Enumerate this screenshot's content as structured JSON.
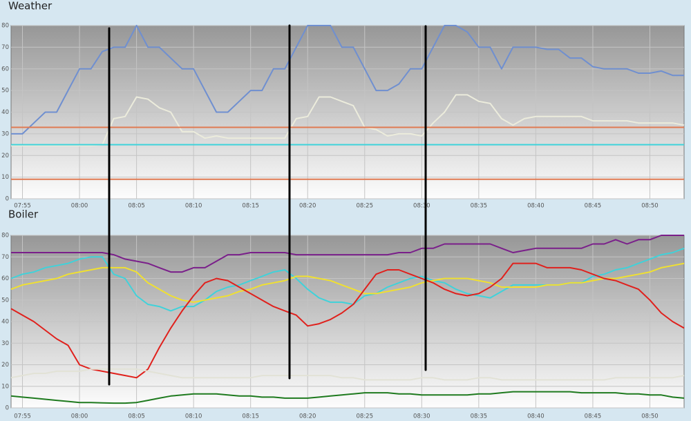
{
  "chart_data": [
    {
      "type": "line",
      "title": "Weather",
      "grid": true,
      "x": [
        "07:54",
        "07:55",
        "07:56",
        "07:57",
        "07:58",
        "07:59",
        "08:00",
        "08:01",
        "08:02",
        "08:03",
        "08:04",
        "08:05",
        "08:06",
        "08:07",
        "08:08",
        "08:09",
        "08:10",
        "08:11",
        "08:12",
        "08:13",
        "08:14",
        "08:15",
        "08:16",
        "08:17",
        "08:18",
        "08:19",
        "08:20",
        "08:21",
        "08:22",
        "08:23",
        "08:24",
        "08:25",
        "08:26",
        "08:27",
        "08:28",
        "08:29",
        "08:30",
        "08:31",
        "08:32",
        "08:33",
        "08:34",
        "08:35",
        "08:36",
        "08:37",
        "08:38",
        "08:39",
        "08:40",
        "08:41",
        "08:42",
        "08:43",
        "08:44",
        "08:45",
        "08:46",
        "08:47",
        "08:48",
        "08:49",
        "08:50",
        "08:51",
        "08:52",
        "08:53"
      ],
      "xlim": [
        "07:54",
        "08:53"
      ],
      "xticks": [
        "07:55",
        "08:00",
        "08:05",
        "08:10",
        "08:15",
        "08:20",
        "08:25",
        "08:30",
        "08:35",
        "08:40",
        "08:45",
        "08:50"
      ],
      "ylim": [
        0,
        80
      ],
      "yticks": [
        0,
        10,
        20,
        30,
        40,
        50,
        60,
        70,
        80
      ],
      "series": [
        {
          "color": "#6f8fd0",
          "values": [
            30,
            30,
            35,
            40,
            40,
            50,
            60,
            60,
            68,
            70,
            70,
            80,
            70,
            70,
            65,
            60,
            60,
            50,
            40,
            40,
            45,
            50,
            50,
            60,
            60,
            70,
            80,
            80,
            80,
            70,
            70,
            60,
            50,
            50,
            53,
            60,
            60,
            70,
            80,
            80,
            77,
            70,
            70,
            60,
            70,
            70,
            70,
            69,
            69,
            65,
            65,
            61,
            60,
            60,
            60,
            58,
            58,
            59,
            57,
            57
          ]
        },
        {
          "color": "#ececdc",
          "values": [
            24.5,
            24.5,
            24.5,
            24.5,
            24.5,
            24.5,
            24.5,
            24.5,
            25,
            37,
            38,
            47,
            46,
            42,
            40,
            31,
            31,
            28,
            29,
            28,
            28,
            28,
            28,
            28,
            28,
            37,
            38,
            47,
            47,
            45,
            43,
            33,
            32,
            29,
            30,
            30,
            29,
            35,
            40,
            48,
            48,
            45,
            44,
            37,
            34,
            37,
            38,
            38,
            38,
            38,
            38,
            36,
            36,
            36,
            36,
            35,
            35,
            35,
            35,
            34
          ]
        },
        {
          "color": "#e07a52",
          "values": [
            33,
            33,
            33,
            33,
            33,
            33,
            33,
            33,
            33,
            33,
            33,
            33,
            33,
            33,
            33,
            33,
            33,
            33,
            33,
            33,
            33,
            33,
            33,
            33,
            33,
            33,
            33,
            33,
            33,
            33,
            33,
            33,
            33,
            33,
            33,
            33,
            33,
            33,
            33,
            33,
            33,
            33,
            33,
            33,
            33,
            33,
            33,
            33,
            33,
            33,
            33,
            33,
            33,
            33,
            33,
            33,
            33,
            33,
            33,
            33
          ]
        },
        {
          "color": "#3fd2da",
          "values": [
            25,
            25,
            25,
            25,
            25,
            25,
            25,
            25,
            25,
            25,
            25,
            25,
            25,
            25,
            25,
            25,
            25,
            25,
            25,
            25,
            25,
            25,
            25,
            25,
            25,
            25,
            25,
            25,
            25,
            25,
            25,
            25,
            25,
            25,
            25,
            25,
            25,
            25,
            25,
            25,
            25,
            25,
            25,
            25,
            25,
            25,
            25,
            25,
            25,
            25,
            25,
            25,
            25,
            25,
            25,
            25,
            25,
            25,
            25,
            25
          ]
        },
        {
          "color": "#e07a52",
          "values": [
            9,
            9,
            9,
            9,
            9,
            9,
            9,
            9,
            9,
            9,
            9,
            9,
            9,
            9,
            9,
            9,
            9,
            9,
            9,
            9,
            9,
            9,
            9,
            9,
            9,
            9,
            9,
            9,
            9,
            9,
            9,
            9,
            9,
            9,
            9,
            9,
            9,
            9,
            9,
            9,
            9,
            9,
            9,
            9,
            9,
            9,
            9,
            9,
            9,
            9,
            9,
            9,
            9,
            9,
            9,
            9,
            9,
            9,
            9,
            9
          ]
        }
      ]
    },
    {
      "type": "line",
      "title": "Boiler",
      "grid": true,
      "x": [
        "07:54",
        "07:55",
        "07:56",
        "07:57",
        "07:58",
        "07:59",
        "08:00",
        "08:01",
        "08:02",
        "08:03",
        "08:04",
        "08:05",
        "08:06",
        "08:07",
        "08:08",
        "08:09",
        "08:10",
        "08:11",
        "08:12",
        "08:13",
        "08:14",
        "08:15",
        "08:16",
        "08:17",
        "08:18",
        "08:19",
        "08:20",
        "08:21",
        "08:22",
        "08:23",
        "08:24",
        "08:25",
        "08:26",
        "08:27",
        "08:28",
        "08:29",
        "08:30",
        "08:31",
        "08:32",
        "08:33",
        "08:34",
        "08:35",
        "08:36",
        "08:37",
        "08:38",
        "08:39",
        "08:40",
        "08:41",
        "08:42",
        "08:43",
        "08:44",
        "08:45",
        "08:46",
        "08:47",
        "08:48",
        "08:49",
        "08:50",
        "08:51",
        "08:52",
        "08:53"
      ],
      "xlim": [
        "07:54",
        "08:53"
      ],
      "xticks": [
        "07:55",
        "08:00",
        "08:05",
        "08:10",
        "08:15",
        "08:20",
        "08:25",
        "08:30",
        "08:35",
        "08:40",
        "08:45",
        "08:50"
      ],
      "ylim": [
        0,
        80
      ],
      "yticks": [
        0,
        10,
        20,
        30,
        40,
        50,
        60,
        70,
        80
      ],
      "series": [
        {
          "color": "#7a1f8a",
          "values": [
            72,
            72,
            72,
            72,
            72,
            72,
            72,
            72,
            72,
            71,
            69,
            68,
            67,
            65,
            63,
            63,
            65,
            65,
            68,
            71,
            71,
            72,
            72,
            72,
            72,
            71,
            71,
            71,
            71,
            71,
            71,
            71,
            71,
            71,
            72,
            72,
            74,
            74,
            76,
            76,
            76,
            76,
            76,
            74,
            72,
            73,
            74,
            74,
            74,
            74,
            74,
            76,
            76,
            78,
            76,
            78,
            78,
            80,
            80,
            80
          ]
        },
        {
          "color": "#3fd2da",
          "values": [
            60,
            62,
            63,
            65,
            66,
            67,
            69,
            70,
            70,
            62,
            60,
            52,
            48,
            47,
            45,
            47,
            47,
            50,
            54,
            56,
            57,
            59,
            61,
            63,
            64,
            60,
            55,
            51,
            49,
            49,
            48,
            52,
            53,
            56,
            58,
            60,
            61,
            59,
            58,
            55,
            53,
            52,
            51,
            54,
            57,
            57,
            57,
            57,
            57,
            58,
            58,
            61,
            62,
            64,
            65,
            67,
            69,
            71,
            72,
            74
          ]
        },
        {
          "color": "#f0e030",
          "values": [
            55,
            57,
            58,
            59,
            60,
            62,
            63,
            64,
            65,
            65,
            65,
            63,
            58,
            55,
            52,
            50,
            49,
            50,
            51,
            52,
            54,
            55,
            57,
            58,
            59,
            61,
            61,
            60,
            59,
            57,
            55,
            53,
            53,
            54,
            55,
            56,
            58,
            59,
            60,
            60,
            60,
            59,
            58,
            56,
            56,
            56,
            56,
            57,
            57,
            58,
            58,
            59,
            60,
            60,
            61,
            62,
            63,
            65,
            66,
            67
          ]
        },
        {
          "color": "#e0201c",
          "values": [
            46,
            43,
            40,
            36,
            32,
            29,
            20,
            18,
            17,
            16,
            15,
            14,
            18,
            28,
            37,
            45,
            52,
            58,
            60,
            59,
            56,
            53,
            50,
            47,
            45,
            43,
            38,
            39,
            41,
            44,
            48,
            55,
            62,
            64,
            64,
            62,
            60,
            58,
            55,
            53,
            52,
            53,
            56,
            60,
            67,
            67,
            67,
            65,
            65,
            65,
            64,
            62,
            60,
            59,
            57,
            55,
            50,
            44,
            40,
            37
          ]
        },
        {
          "color": "#e2e2d6",
          "values": [
            14,
            15,
            16,
            16,
            17,
            17,
            17,
            18,
            18,
            18,
            18,
            18,
            17,
            16,
            15,
            14,
            14,
            14,
            14,
            14,
            14,
            14,
            15,
            15,
            15,
            15,
            15,
            15,
            15,
            14,
            14,
            13,
            13,
            13,
            13,
            13,
            14,
            14,
            13,
            13,
            13,
            14,
            14,
            13,
            13,
            13,
            13,
            13,
            13,
            13,
            13,
            13,
            13,
            14,
            14,
            14,
            14,
            14,
            14,
            15
          ]
        },
        {
          "color": "#1e7a1e",
          "values": [
            5.5,
            5,
            4.5,
            4,
            3.5,
            3,
            2.5,
            2.5,
            2.3,
            2.2,
            2.2,
            2.5,
            3.5,
            4.5,
            5.5,
            6,
            6.5,
            6.5,
            6.5,
            6,
            5.5,
            5.5,
            5,
            5,
            4.5,
            4.5,
            4.5,
            5,
            5.5,
            6,
            6.5,
            7,
            7,
            7,
            6.5,
            6.5,
            6,
            6,
            6,
            6,
            6,
            6.5,
            6.5,
            7,
            7.5,
            7.5,
            7.5,
            7.5,
            7.5,
            7.5,
            7,
            7,
            7,
            7,
            6.5,
            6.5,
            6,
            6,
            5,
            4.5
          ]
        }
      ]
    }
  ]
}
